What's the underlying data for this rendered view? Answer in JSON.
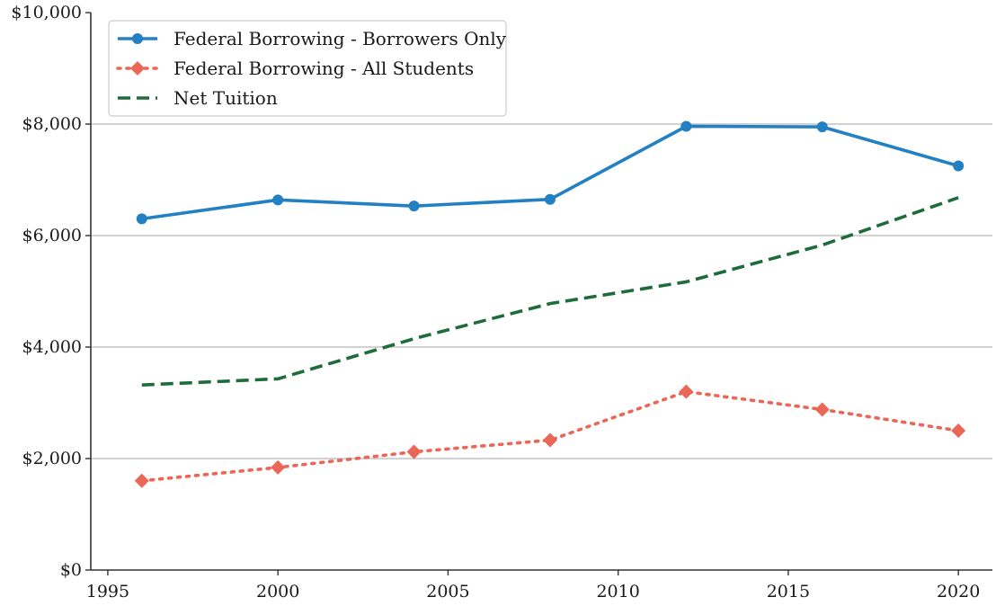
{
  "chart_data": {
    "type": "line",
    "title": "",
    "xlabel": "",
    "ylabel": "",
    "xlim": [
      1994.5,
      2021
    ],
    "ylim": [
      0,
      10000
    ],
    "x_ticks": [
      1995,
      2000,
      2005,
      2010,
      2015,
      2020
    ],
    "x_tick_labels": [
      "1995",
      "2000",
      "2005",
      "2010",
      "2015",
      "2020"
    ],
    "y_ticks": [
      0,
      2000,
      4000,
      6000,
      8000,
      10000
    ],
    "y_tick_labels": [
      "$0",
      "$2,000",
      "$4,000",
      "$6,000",
      "$8,000",
      "$10,000"
    ],
    "grid": "horizontal",
    "legend_position": "top-left",
    "series": [
      {
        "name": "Federal Borrowing - Borrowers Only",
        "color": "#2380c3",
        "line_style": "solid",
        "marker": "circle",
        "x": [
          1996,
          2000,
          2004,
          2008,
          2012,
          2016,
          2020
        ],
        "y": [
          6300,
          6640,
          6530,
          6650,
          7960,
          7950,
          7250
        ]
      },
      {
        "name": "Federal Borrowing - All Students",
        "color": "#ea6656",
        "line_style": "dotted",
        "marker": "diamond",
        "x": [
          1996,
          2000,
          2004,
          2008,
          2012,
          2016,
          2020
        ],
        "y": [
          1600,
          1840,
          2120,
          2330,
          3200,
          2880,
          2500
        ]
      },
      {
        "name": "Net Tuition",
        "color": "#1e6b3c",
        "line_style": "dashed",
        "marker": "none",
        "x": [
          1996,
          2000,
          2004,
          2008,
          2012,
          2016,
          2020
        ],
        "y": [
          3320,
          3430,
          4150,
          4780,
          5170,
          5830,
          6680
        ]
      }
    ]
  }
}
